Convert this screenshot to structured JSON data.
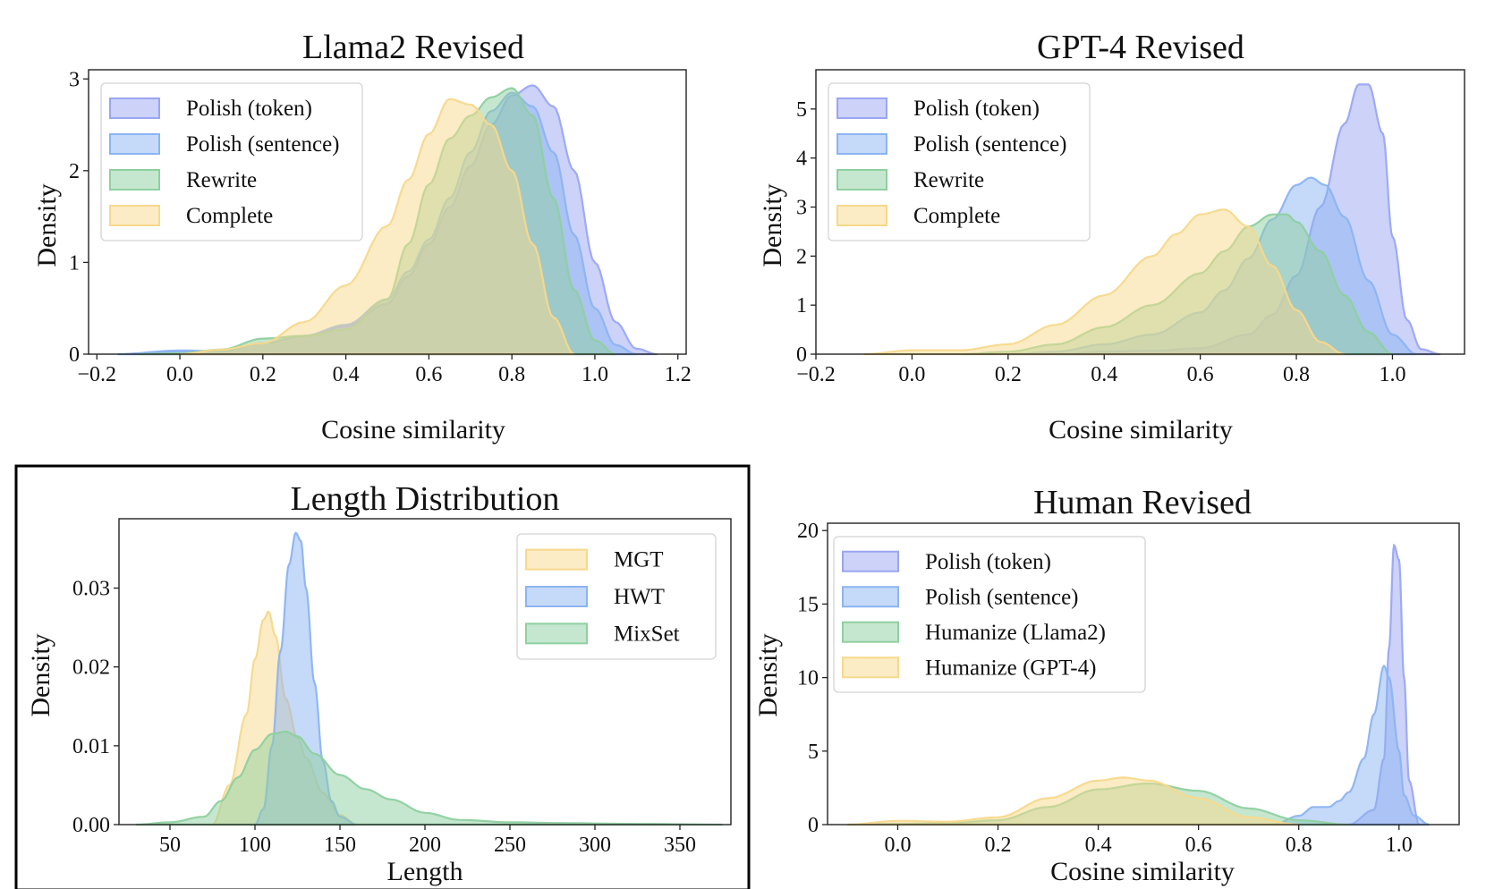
{
  "chart_data": [
    {
      "type": "area",
      "title": "Llama2 Revised",
      "xlabel": "Cosine similarity",
      "ylabel": "Density",
      "xlim": [
        -0.22,
        1.22
      ],
      "ylim": [
        0,
        3.1
      ],
      "xticks": [
        -0.2,
        0.0,
        0.2,
        0.4,
        0.6,
        0.8,
        1.0,
        1.2
      ],
      "xtick_labels": [
        "−0.2",
        "0.0",
        "0.2",
        "0.4",
        "0.6",
        "0.8",
        "1.0",
        "1.2"
      ],
      "yticks": [
        0,
        1,
        2,
        3
      ],
      "ytick_labels": [
        "0",
        "1",
        "2",
        "3"
      ],
      "legend_position": "top-left",
      "series": [
        {
          "name": "Polish (token)",
          "color": "#9aa6f2",
          "x": [
            -0.15,
            0.0,
            0.1,
            0.2,
            0.3,
            0.4,
            0.5,
            0.55,
            0.6,
            0.65,
            0.7,
            0.75,
            0.8,
            0.85,
            0.9,
            0.95,
            1.0,
            1.05,
            1.1,
            1.15
          ],
          "y": [
            0,
            0.03,
            0.03,
            0.12,
            0.2,
            0.3,
            0.55,
            0.85,
            1.2,
            1.6,
            2.05,
            2.5,
            2.82,
            2.93,
            2.7,
            2.0,
            1.0,
            0.35,
            0.06,
            0
          ]
        },
        {
          "name": "Polish (sentence)",
          "color": "#8cb4f2",
          "x": [
            -0.15,
            0.0,
            0.1,
            0.2,
            0.3,
            0.4,
            0.5,
            0.55,
            0.6,
            0.65,
            0.7,
            0.75,
            0.8,
            0.85,
            0.9,
            0.95,
            1.0,
            1.05,
            1.1
          ],
          "y": [
            0,
            0.04,
            0.03,
            0.12,
            0.2,
            0.32,
            0.6,
            0.9,
            1.25,
            1.7,
            2.2,
            2.65,
            2.85,
            2.7,
            2.2,
            1.3,
            0.5,
            0.1,
            0
          ]
        },
        {
          "name": "Rewrite",
          "color": "#8ed0a0",
          "x": [
            -0.1,
            0.0,
            0.1,
            0.2,
            0.3,
            0.4,
            0.5,
            0.55,
            0.6,
            0.65,
            0.7,
            0.75,
            0.8,
            0.85,
            0.9,
            0.95,
            1.0,
            1.05
          ],
          "y": [
            0,
            0.01,
            0.05,
            0.17,
            0.2,
            0.27,
            0.6,
            1.2,
            1.85,
            2.35,
            2.6,
            2.8,
            2.9,
            2.6,
            1.7,
            0.7,
            0.15,
            0
          ]
        },
        {
          "name": "Complete",
          "color": "#f7d98c",
          "x": [
            0.0,
            0.1,
            0.2,
            0.3,
            0.4,
            0.5,
            0.55,
            0.6,
            0.65,
            0.7,
            0.75,
            0.8,
            0.85,
            0.9,
            0.95
          ],
          "y": [
            0,
            0.05,
            0.12,
            0.35,
            0.75,
            1.4,
            1.9,
            2.4,
            2.78,
            2.72,
            2.5,
            2.0,
            1.2,
            0.4,
            0
          ]
        }
      ]
    },
    {
      "type": "area",
      "title": "GPT-4 Revised",
      "xlabel": "Cosine similarity",
      "ylabel": "Density",
      "xlim": [
        -0.2,
        1.15
      ],
      "ylim": [
        0,
        5.8
      ],
      "xticks": [
        -0.2,
        0.0,
        0.2,
        0.4,
        0.6,
        0.8,
        1.0
      ],
      "xtick_labels": [
        "−0.2",
        "0.0",
        "0.2",
        "0.4",
        "0.6",
        "0.8",
        "1.0"
      ],
      "yticks": [
        0,
        1,
        2,
        3,
        4,
        5
      ],
      "ytick_labels": [
        "0",
        "1",
        "2",
        "3",
        "4",
        "5"
      ],
      "legend_position": "top-left",
      "series": [
        {
          "name": "Polish (token)",
          "color": "#9aa6f2",
          "x": [
            0.3,
            0.4,
            0.5,
            0.6,
            0.7,
            0.75,
            0.8,
            0.85,
            0.9,
            0.93,
            0.95,
            0.98,
            1.0,
            1.03,
            1.06,
            1.1
          ],
          "y": [
            0,
            0.05,
            0.07,
            0.12,
            0.4,
            0.8,
            1.6,
            3.0,
            4.7,
            5.5,
            5.5,
            4.5,
            2.4,
            0.7,
            0.1,
            0
          ]
        },
        {
          "name": "Polish (sentence)",
          "color": "#8cb4f2",
          "x": [
            0.2,
            0.3,
            0.4,
            0.5,
            0.6,
            0.65,
            0.7,
            0.75,
            0.8,
            0.83,
            0.86,
            0.9,
            0.95,
            1.0,
            1.05
          ],
          "y": [
            0,
            0.05,
            0.2,
            0.4,
            0.85,
            1.3,
            1.95,
            2.75,
            3.45,
            3.6,
            3.45,
            2.8,
            1.5,
            0.4,
            0
          ]
        },
        {
          "name": "Rewrite",
          "color": "#8ed0a0",
          "x": [
            0.1,
            0.2,
            0.3,
            0.4,
            0.5,
            0.6,
            0.65,
            0.7,
            0.75,
            0.78,
            0.8,
            0.85,
            0.9,
            0.95,
            1.0
          ],
          "y": [
            0,
            0.05,
            0.2,
            0.55,
            1.0,
            1.65,
            2.1,
            2.6,
            2.85,
            2.85,
            2.7,
            2.1,
            1.2,
            0.45,
            0
          ]
        },
        {
          "name": "Complete",
          "color": "#f7d98c",
          "x": [
            -0.1,
            0.0,
            0.1,
            0.2,
            0.3,
            0.4,
            0.5,
            0.55,
            0.6,
            0.65,
            0.7,
            0.75,
            0.8,
            0.85,
            0.9
          ],
          "y": [
            0,
            0.08,
            0.08,
            0.2,
            0.6,
            1.2,
            2.0,
            2.45,
            2.85,
            2.95,
            2.6,
            1.8,
            0.9,
            0.25,
            0
          ]
        }
      ]
    },
    {
      "type": "area",
      "title": "Length Distribution",
      "xlabel": "Length",
      "ylabel": "Density",
      "xlim": [
        20,
        380
      ],
      "ylim": [
        0,
        0.0388
      ],
      "xticks": [
        50,
        100,
        150,
        200,
        250,
        300,
        350
      ],
      "xtick_labels": [
        "50",
        "100",
        "150",
        "200",
        "250",
        "300",
        "350"
      ],
      "yticks": [
        0,
        0.01,
        0.02,
        0.03
      ],
      "ytick_labels": [
        "0.00",
        "0.01",
        "0.02",
        "0.03"
      ],
      "legend_position": "top-right",
      "series": [
        {
          "name": "MGT",
          "color": "#f7d98c",
          "x": [
            75,
            85,
            95,
            100,
            105,
            108,
            112,
            118,
            125,
            130,
            140,
            150,
            160
          ],
          "y": [
            0,
            0.005,
            0.014,
            0.021,
            0.026,
            0.027,
            0.024,
            0.016,
            0.011,
            0.0085,
            0.004,
            0.0012,
            0
          ]
        },
        {
          "name": "HWT",
          "color": "#8cb4f2",
          "x": [
            100,
            105,
            110,
            115,
            120,
            124,
            127,
            130,
            135,
            140,
            145,
            150,
            160
          ],
          "y": [
            0,
            0.002,
            0.01,
            0.022,
            0.033,
            0.037,
            0.036,
            0.03,
            0.018,
            0.008,
            0.003,
            0.001,
            0
          ]
        },
        {
          "name": "MixSet",
          "color": "#8ed0a0",
          "x": [
            30,
            50,
            70,
            80,
            90,
            100,
            110,
            118,
            125,
            135,
            150,
            165,
            180,
            200,
            220,
            250,
            280,
            320,
            375
          ],
          "y": [
            0,
            0.0003,
            0.001,
            0.003,
            0.006,
            0.0095,
            0.0115,
            0.0118,
            0.0112,
            0.009,
            0.0063,
            0.0045,
            0.0032,
            0.0015,
            0.0006,
            0.0003,
            0.0002,
            0.0001,
            0
          ]
        }
      ]
    },
    {
      "type": "area",
      "title": "Human Revised",
      "xlabel": "Cosine similarity",
      "ylabel": "Density",
      "xlim": [
        -0.14,
        1.12
      ],
      "ylim": [
        0,
        20.5
      ],
      "xticks": [
        0.0,
        0.2,
        0.4,
        0.6,
        0.8,
        1.0
      ],
      "xtick_labels": [
        "0.0",
        "0.2",
        "0.4",
        "0.6",
        "0.8",
        "1.0"
      ],
      "yticks": [
        0,
        5,
        10,
        15,
        20
      ],
      "ytick_labels": [
        "0",
        "5",
        "10",
        "15",
        "20"
      ],
      "legend_position": "top-left",
      "series": [
        {
          "name": "Polish (token)",
          "color": "#9aa6f2",
          "x": [
            0.9,
            0.95,
            0.97,
            0.98,
            0.99,
            1.0,
            1.01,
            1.02,
            1.04
          ],
          "y": [
            0,
            1.0,
            4.5,
            12.0,
            19.0,
            18.0,
            10.0,
            3.0,
            0
          ]
        },
        {
          "name": "Polish (sentence)",
          "color": "#8cb4f2",
          "x": [
            0.75,
            0.8,
            0.83,
            0.86,
            0.88,
            0.9,
            0.93,
            0.95,
            0.97,
            0.98,
            1.0,
            1.01,
            1.03,
            1.06
          ],
          "y": [
            0,
            0.6,
            1.2,
            1.2,
            1.6,
            2.2,
            4.5,
            7.5,
            10.8,
            10.0,
            5.0,
            2.0,
            0.6,
            0
          ]
        },
        {
          "name": "Humanize (Llama2)",
          "color": "#8ed0a0",
          "x": [
            -0.1,
            0.0,
            0.1,
            0.2,
            0.3,
            0.4,
            0.5,
            0.6,
            0.7,
            0.8,
            0.9
          ],
          "y": [
            0,
            0.05,
            0.1,
            0.3,
            1.2,
            2.4,
            2.8,
            2.3,
            1.1,
            0.3,
            0
          ]
        },
        {
          "name": "Humanize (GPT-4)",
          "color": "#f7d98c",
          "x": [
            -0.1,
            0.0,
            0.1,
            0.2,
            0.3,
            0.4,
            0.45,
            0.5,
            0.6,
            0.7,
            0.8
          ],
          "y": [
            0,
            0.25,
            0.2,
            0.5,
            1.8,
            3.0,
            3.2,
            3.0,
            1.8,
            0.5,
            0
          ]
        }
      ]
    }
  ]
}
